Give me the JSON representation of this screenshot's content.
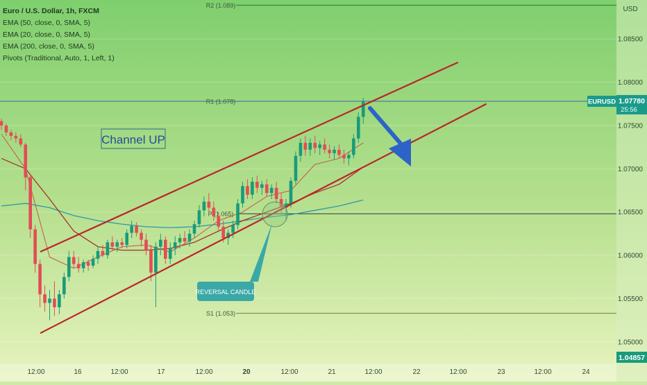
{
  "chart_data": {
    "type": "candlestick",
    "symbol_line": "Euro / U.S. Dollar, 1h, FXCM",
    "indicators": [
      "EMA (50, close, 0, SMA, 5)",
      "EMA (20, close, 0, SMA, 5)",
      "EMA (200, close, 0, SMA, 5)",
      "Pivots (Traditional, Auto, 1, Left, 1)"
    ],
    "currency_label": "USD",
    "price_axis": {
      "min": 1.0475,
      "max": 1.0895,
      "ticks": [
        "1.08500",
        "1.08000",
        "1.07500",
        "1.07000",
        "1.06500",
        "1.06000",
        "1.05500",
        "1.05000"
      ]
    },
    "time_axis": {
      "ticks": [
        "12:00",
        "16",
        "12:00",
        "17",
        "12:00",
        "20",
        "12:00",
        "21",
        "12:00",
        "22",
        "12:00",
        "23",
        "12:00",
        "24"
      ],
      "bold_ticks": [
        "20"
      ]
    },
    "symbol_badge": "EURUSD",
    "last_price": "1.07780",
    "countdown": "25:56",
    "low_price_badge": "1.04857",
    "last_price_value": 1.0778,
    "low_price_value": 1.04857,
    "pivots": [
      {
        "label": "R2 (1.089)",
        "value": 1.0889
      },
      {
        "label": "R1 (1.078)",
        "value": 1.0778
      },
      {
        "label": "P (1.065)",
        "value": 1.0648
      },
      {
        "label": "S1 (1.053)",
        "value": 1.0533
      }
    ],
    "annotations": {
      "channel_label": "Channel UP",
      "reversal_label": "REVERSAL CANDLE"
    },
    "channel": {
      "upper": [
        [
          0.0,
          1.0604
        ],
        [
          11.8,
          1.0823
        ]
      ],
      "lower": [
        [
          0.0,
          1.051
        ],
        [
          12.6,
          1.0775
        ]
      ]
    },
    "candles_ohlc": [
      [
        1.0755,
        1.0758,
        1.0745,
        1.075
      ],
      [
        1.075,
        1.0752,
        1.0738,
        1.0742
      ],
      [
        1.0742,
        1.0745,
        1.0733,
        1.0738
      ],
      [
        1.0738,
        1.0742,
        1.073,
        1.0735
      ],
      [
        1.0735,
        1.074,
        1.0725,
        1.0728
      ],
      [
        1.0728,
        1.073,
        1.0675,
        1.069
      ],
      [
        1.069,
        1.0693,
        1.062,
        1.063
      ],
      [
        1.063,
        1.0635,
        1.058,
        1.059
      ],
      [
        1.059,
        1.0595,
        1.054,
        1.0555
      ],
      [
        1.0555,
        1.0565,
        1.0535,
        1.0545
      ],
      [
        1.0545,
        1.056,
        1.0525,
        1.055
      ],
      [
        1.055,
        1.057,
        1.053,
        1.054
      ],
      [
        1.054,
        1.056,
        1.0532,
        1.0555
      ],
      [
        1.0555,
        1.058,
        1.055,
        1.0575
      ],
      [
        1.0575,
        1.0605,
        1.057,
        1.0598
      ],
      [
        1.0598,
        1.0605,
        1.0585,
        1.059
      ],
      [
        1.059,
        1.0598,
        1.058,
        1.0585
      ],
      [
        1.0585,
        1.0595,
        1.058,
        1.0592
      ],
      [
        1.0592,
        1.0595,
        1.0582,
        1.0588
      ],
      [
        1.0588,
        1.06,
        1.0585,
        1.0596
      ],
      [
        1.0596,
        1.061,
        1.059,
        1.0605
      ],
      [
        1.0605,
        1.0612,
        1.0598,
        1.06
      ],
      [
        1.06,
        1.0618,
        1.0596,
        1.0615
      ],
      [
        1.0615,
        1.0622,
        1.0605,
        1.061
      ],
      [
        1.061,
        1.0618,
        1.0604,
        1.0615
      ],
      [
        1.0615,
        1.062,
        1.0608,
        1.0612
      ],
      [
        1.0612,
        1.063,
        1.0608,
        1.0626
      ],
      [
        1.0626,
        1.064,
        1.062,
        1.0634
      ],
      [
        1.0634,
        1.0638,
        1.0622,
        1.0626
      ],
      [
        1.0626,
        1.063,
        1.061,
        1.0618
      ],
      [
        1.0618,
        1.0625,
        1.06,
        1.0606
      ],
      [
        1.0606,
        1.0612,
        1.057,
        1.058
      ],
      [
        1.058,
        1.0615,
        1.054,
        1.061
      ],
      [
        1.061,
        1.0625,
        1.06,
        1.0618
      ],
      [
        1.0618,
        1.0622,
        1.059,
        1.0596
      ],
      [
        1.0596,
        1.0615,
        1.059,
        1.0608
      ],
      [
        1.0608,
        1.0622,
        1.06,
        1.0615
      ],
      [
        1.0615,
        1.0625,
        1.0608,
        1.062
      ],
      [
        1.062,
        1.0628,
        1.0612,
        1.0616
      ],
      [
        1.0616,
        1.063,
        1.061,
        1.0625
      ],
      [
        1.0625,
        1.064,
        1.062,
        1.0636
      ],
      [
        1.0636,
        1.0658,
        1.0632,
        1.0652
      ],
      [
        1.0652,
        1.0668,
        1.0645,
        1.0662
      ],
      [
        1.0662,
        1.0672,
        1.065,
        1.0655
      ],
      [
        1.0655,
        1.0662,
        1.064,
        1.0645
      ],
      [
        1.0645,
        1.065,
        1.0628,
        1.0633
      ],
      [
        1.0633,
        1.064,
        1.0615,
        1.062
      ],
      [
        1.062,
        1.063,
        1.0612,
        1.0626
      ],
      [
        1.0626,
        1.064,
        1.062,
        1.0635
      ],
      [
        1.0635,
        1.0665,
        1.063,
        1.066
      ],
      [
        1.066,
        1.0685,
        1.0655,
        1.068
      ],
      [
        1.068,
        1.0688,
        1.0665,
        1.067
      ],
      [
        1.067,
        1.069,
        1.0665,
        1.0685
      ],
      [
        1.0685,
        1.0692,
        1.0672,
        1.0678
      ],
      [
        1.0678,
        1.0686,
        1.067,
        1.0682
      ],
      [
        1.0682,
        1.0688,
        1.0668,
        1.0672
      ],
      [
        1.0672,
        1.0682,
        1.0665,
        1.0678
      ],
      [
        1.0678,
        1.0685,
        1.066,
        1.0665
      ],
      [
        1.0665,
        1.0672,
        1.0648,
        1.0655
      ],
      [
        1.0655,
        1.0665,
        1.064,
        1.066
      ],
      [
        1.066,
        1.069,
        1.0655,
        1.0686
      ],
      [
        1.0686,
        1.072,
        1.0682,
        1.0715
      ],
      [
        1.0715,
        1.0735,
        1.0708,
        1.073
      ],
      [
        1.073,
        1.0738,
        1.0715,
        1.0722
      ],
      [
        1.0722,
        1.0735,
        1.0715,
        1.073
      ],
      [
        1.073,
        1.0738,
        1.0718,
        1.0724
      ],
      [
        1.0724,
        1.0732,
        1.0716,
        1.0728
      ],
      [
        1.0728,
        1.0735,
        1.0718,
        1.0722
      ],
      [
        1.0722,
        1.0728,
        1.0712,
        1.0718
      ],
      [
        1.0718,
        1.0726,
        1.071,
        1.0722
      ],
      [
        1.0722,
        1.0728,
        1.0712,
        1.0716
      ],
      [
        1.0716,
        1.0722,
        1.0706,
        1.0712
      ],
      [
        1.0712,
        1.072,
        1.0704,
        1.0716
      ],
      [
        1.0716,
        1.074,
        1.0712,
        1.0735
      ],
      [
        1.0735,
        1.0765,
        1.073,
        1.076
      ],
      [
        1.076,
        1.0782,
        1.0752,
        1.0778
      ]
    ],
    "ema20": [
      [
        0,
        1.074
      ],
      [
        5,
        1.07
      ],
      [
        10,
        1.0598
      ],
      [
        15,
        1.0585
      ],
      [
        20,
        1.0598
      ],
      [
        25,
        1.061
      ],
      [
        30,
        1.0612
      ],
      [
        35,
        1.0604
      ],
      [
        40,
        1.062
      ],
      [
        45,
        1.064
      ],
      [
        50,
        1.065
      ],
      [
        55,
        1.0668
      ],
      [
        60,
        1.0675
      ],
      [
        65,
        1.0705
      ],
      [
        70,
        1.0712
      ],
      [
        75,
        1.073
      ]
    ],
    "ema50": [
      [
        0,
        1.0712
      ],
      [
        5,
        1.07
      ],
      [
        10,
        1.0665
      ],
      [
        15,
        1.0628
      ],
      [
        20,
        1.061
      ],
      [
        25,
        1.0606
      ],
      [
        30,
        1.0606
      ],
      [
        35,
        1.0608
      ],
      [
        40,
        1.0615
      ],
      [
        45,
        1.0628
      ],
      [
        50,
        1.064
      ],
      [
        55,
        1.065
      ],
      [
        60,
        1.066
      ],
      [
        65,
        1.0672
      ],
      [
        70,
        1.0682
      ],
      [
        75,
        1.0702
      ]
    ],
    "ema200": [
      [
        0,
        1.0657
      ],
      [
        5,
        1.066
      ],
      [
        10,
        1.0655
      ],
      [
        15,
        1.0646
      ],
      [
        20,
        1.064
      ],
      [
        25,
        1.0636
      ],
      [
        30,
        1.0633
      ],
      [
        35,
        1.0632
      ],
      [
        40,
        1.0633
      ],
      [
        45,
        1.0636
      ],
      [
        50,
        1.064
      ],
      [
        55,
        1.0644
      ],
      [
        60,
        1.0647
      ],
      [
        65,
        1.0652
      ],
      [
        70,
        1.0657
      ],
      [
        75,
        1.0664
      ]
    ]
  }
}
